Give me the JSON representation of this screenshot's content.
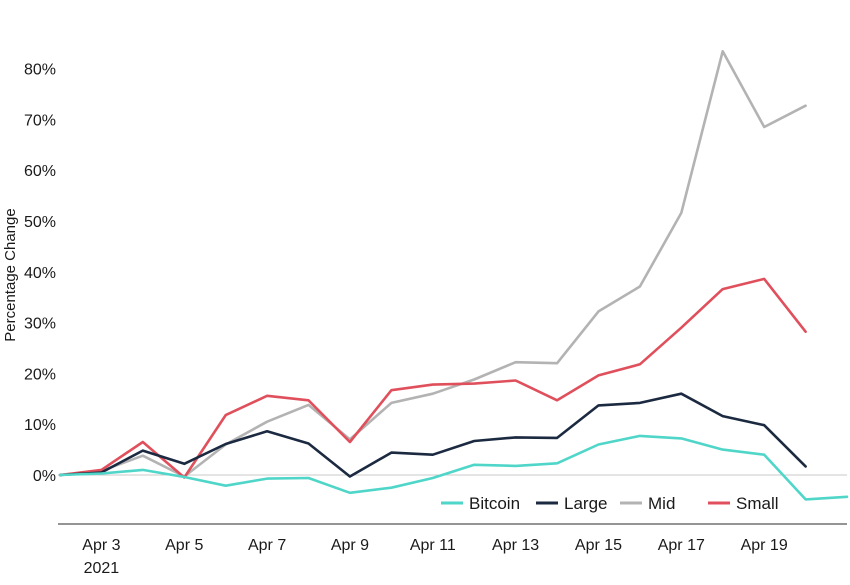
{
  "chart_data": {
    "type": "line",
    "ylabel": "Percentage Change",
    "x": [
      "Apr 2",
      "Apr 3",
      "Apr 4",
      "Apr 5",
      "Apr 6",
      "Apr 7",
      "Apr 8",
      "Apr 9",
      "Apr 10",
      "Apr 11",
      "Apr 12",
      "Apr 13",
      "Apr 14",
      "Apr 15",
      "Apr 16",
      "Apr 17",
      "Apr 18",
      "Apr 19",
      "Apr 20",
      "Apr 21"
    ],
    "x_tick_labels": [
      {
        "label": "Apr 3",
        "sublabel": "2021",
        "x": "Apr 3"
      },
      {
        "label": "Apr 5",
        "x": "Apr 5"
      },
      {
        "label": "Apr 7",
        "x": "Apr 7"
      },
      {
        "label": "Apr 9",
        "x": "Apr 9"
      },
      {
        "label": "Apr 11",
        "x": "Apr 11"
      },
      {
        "label": "Apr 13",
        "x": "Apr 13"
      },
      {
        "label": "Apr 15",
        "x": "Apr 15"
      },
      {
        "label": "Apr 17",
        "x": "Apr 17"
      },
      {
        "label": "Apr 19",
        "x": "Apr 19"
      }
    ],
    "y_ticks": [
      0,
      10,
      20,
      30,
      40,
      50,
      60,
      70,
      80
    ],
    "y_tick_labels": [
      "0%",
      "10%",
      "20%",
      "30%",
      "40%",
      "50%",
      "60%",
      "70%",
      "80%"
    ],
    "ylim": [
      -10,
      85
    ],
    "grid": false,
    "legend_position": "bottom-right",
    "series": [
      {
        "name": "Bitcoin",
        "color": "#4fd6c9",
        "values": [
          0,
          0.3,
          1,
          -0.4,
          -2.1,
          -0.7,
          -0.6,
          -3.5,
          -2.5,
          -0.6,
          2,
          1.8,
          2.3,
          6,
          7.7,
          7.2,
          5,
          4,
          -4.8,
          -4.3
        ]
      },
      {
        "name": "Large",
        "color": "#1b2a41",
        "values": [
          0,
          0.5,
          4.8,
          2.2,
          6.1,
          8.6,
          6.2,
          -0.3,
          4.4,
          4,
          6.7,
          7.4,
          7.3,
          13.7,
          14.2,
          16,
          11.6,
          9.8,
          1.7,
          null
        ]
      },
      {
        "name": "Mid",
        "color": "#b3b3b3",
        "values": [
          0,
          0.8,
          3.8,
          -0.3,
          6,
          10.5,
          13.8,
          7,
          14.2,
          16,
          18.8,
          22.2,
          22,
          32.2,
          37.1,
          51.6,
          83.4,
          68.5,
          72.7,
          null
        ]
      },
      {
        "name": "Small",
        "color": "#e0505c",
        "values": [
          0,
          1,
          6.5,
          -0.5,
          11.8,
          15.6,
          14.7,
          6.5,
          16.7,
          17.8,
          18,
          18.6,
          14.7,
          19.6,
          21.8,
          29,
          36.6,
          38.6,
          28.2,
          null
        ]
      }
    ]
  }
}
